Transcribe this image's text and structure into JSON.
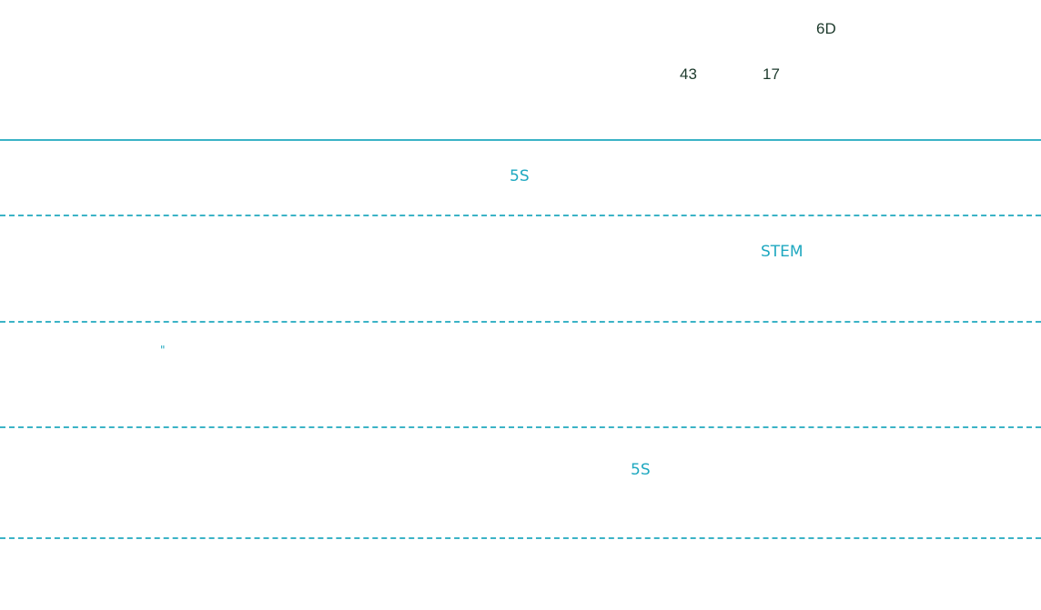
{
  "header": {
    "tag": "6D",
    "count_a": "43",
    "count_b": "17"
  },
  "list": {
    "items": [
      "5S",
      "STEM",
      "\"",
      "5S"
    ]
  }
}
